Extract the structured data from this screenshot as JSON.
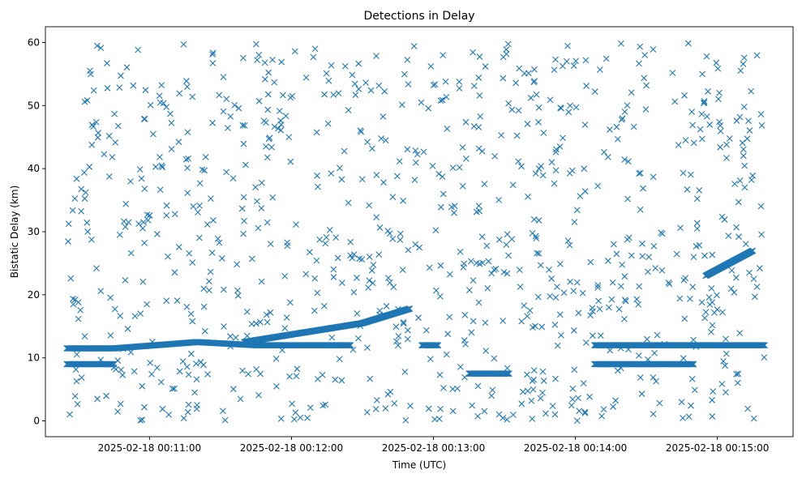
{
  "chart_data": {
    "type": "scatter",
    "title": "Detections in Delay",
    "xlabel": "Time (UTC)",
    "ylabel": "Bistatic Delay (km)",
    "marker": "x",
    "color": "#1f77b4",
    "grid": false,
    "legend": "none",
    "xlim": [
      "2025-02-18 00:10:16",
      "2025-02-18 00:15:32"
    ],
    "ylim": [
      -2.5,
      62.5
    ],
    "x_ticks": [
      "2025-02-18 00:11:00",
      "2025-02-18 00:12:00",
      "2025-02-18 00:13:00",
      "2025-02-18 00:14:00",
      "2025-02-18 00:15:00"
    ],
    "y_ticks": [
      0,
      10,
      20,
      30,
      40,
      50,
      60
    ],
    "series": [
      {
        "description_points": "dense horizontal band near 9 km (00:10:25-00:10:45)",
        "segments": [
          {
            "t_start": "2025-02-18 00:10:25",
            "t_end": "2025-02-18 00:10:45",
            "y_start": 9.0,
            "y_end": 9.0
          },
          {
            "t_start": "2025-02-18 00:10:25",
            "t_end": "2025-02-18 00:10:45",
            "y_start": 11.5,
            "y_end": 11.5
          },
          {
            "t_start": "2025-02-18 00:10:45",
            "t_end": "2025-02-18 00:11:20",
            "y_start": 11.5,
            "y_end": 12.5
          },
          {
            "t_start": "2025-02-18 00:11:20",
            "t_end": "2025-02-18 00:11:45",
            "y_start": 12.5,
            "y_end": 12.0
          },
          {
            "t_start": "2025-02-18 00:11:45",
            "t_end": "2025-02-18 00:12:25",
            "y_start": 12.0,
            "y_end": 12.0
          },
          {
            "t_start": "2025-02-18 00:11:40",
            "t_end": "2025-02-18 00:12:30",
            "y_start": 12.5,
            "y_end": 15.5
          },
          {
            "t_start": "2025-02-18 00:12:30",
            "t_end": "2025-02-18 00:12:50",
            "y_start": 15.5,
            "y_end": 17.8
          },
          {
            "t_start": "2025-02-18 00:12:55",
            "t_end": "2025-02-18 00:13:02",
            "y_start": 12.0,
            "y_end": 12.0
          },
          {
            "t_start": "2025-02-18 00:13:15",
            "t_end": "2025-02-18 00:13:32",
            "y_start": 7.5,
            "y_end": 7.5
          },
          {
            "t_start": "2025-02-18 00:14:08",
            "t_end": "2025-02-18 00:14:50",
            "y_start": 9.0,
            "y_end": 9.0
          },
          {
            "t_start": "2025-02-18 00:14:08",
            "t_end": "2025-02-18 00:15:20",
            "y_start": 12.0,
            "y_end": 12.0
          },
          {
            "t_start": "2025-02-18 00:14:55",
            "t_end": "2025-02-18 00:15:15",
            "y_start": 23.0,
            "y_end": 27.0
          }
        ]
      }
    ]
  }
}
